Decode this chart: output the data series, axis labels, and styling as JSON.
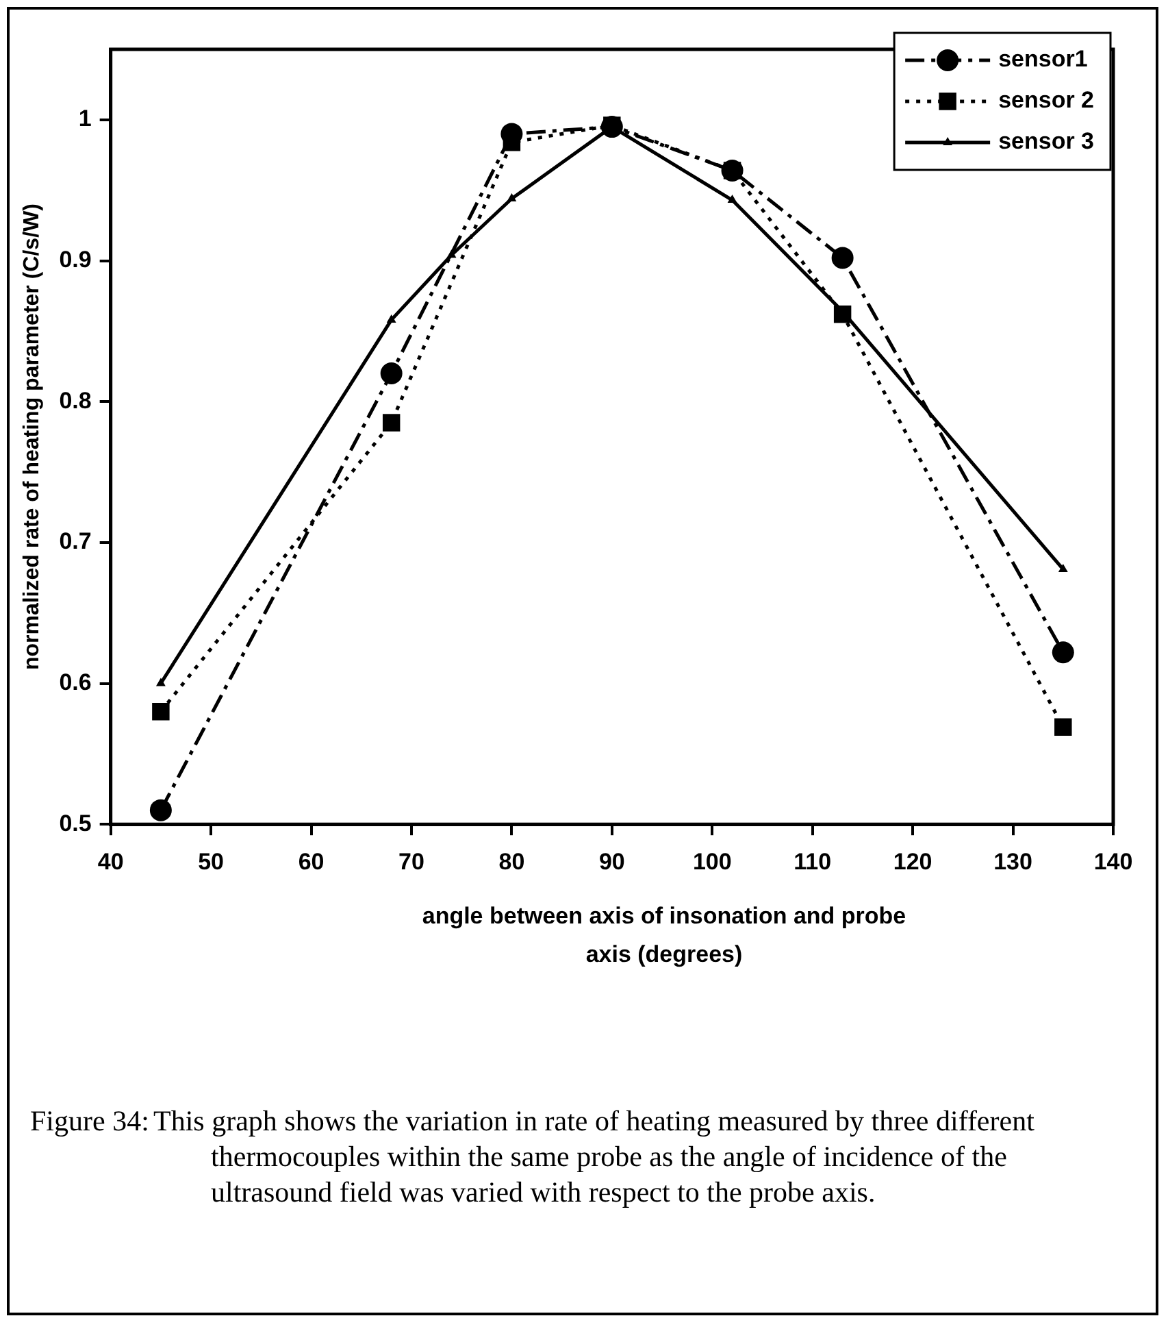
{
  "chart_data": {
    "type": "line",
    "ylabel": "normalized rate of heating parameter (C/s/W)",
    "xlabel": "angle between axis of insonation and probe axis (degrees)",
    "xlim": [
      40,
      140
    ],
    "xticks": [
      40,
      50,
      60,
      70,
      80,
      90,
      100,
      110,
      120,
      130,
      140
    ],
    "ylim": [
      0.5,
      1.05
    ],
    "yticks": [
      0.5,
      0.6,
      0.7,
      0.8,
      0.9,
      1
    ],
    "grid": false,
    "legend": "top right",
    "series": [
      {
        "name": "sensor1",
        "color": "#000000",
        "marker": "circle",
        "line_style": "dashed",
        "x": [
          45,
          68,
          80,
          90,
          102,
          113,
          135
        ],
        "values": [
          0.51,
          0.82,
          0.99,
          0.995,
          0.964,
          0.902,
          0.622
        ]
      },
      {
        "name": "sensor 2",
        "color": "#000000",
        "marker": "square",
        "line_style": "dotted",
        "x": [
          45,
          68,
          80,
          90,
          102,
          113,
          135
        ],
        "values": [
          0.58,
          0.785,
          0.984,
          0.996,
          0.964,
          0.862,
          0.569
        ]
      },
      {
        "name": "sensor 3",
        "color": "#000000",
        "marker": "triangle",
        "line_style": "solid",
        "x": [
          45,
          68,
          74,
          80,
          90,
          102,
          113,
          135
        ],
        "values": [
          0.6,
          0.858,
          0.904,
          0.944,
          0.995,
          0.943,
          0.864,
          0.681
        ]
      }
    ],
    "annotations": [
      "Figure 34:\tThis graph shows the variation in rate of heating measured by three different thermocouples within the same probe as the angle of incidence of the ultrasound field was varied with respect to the probe axis."
    ]
  }
}
